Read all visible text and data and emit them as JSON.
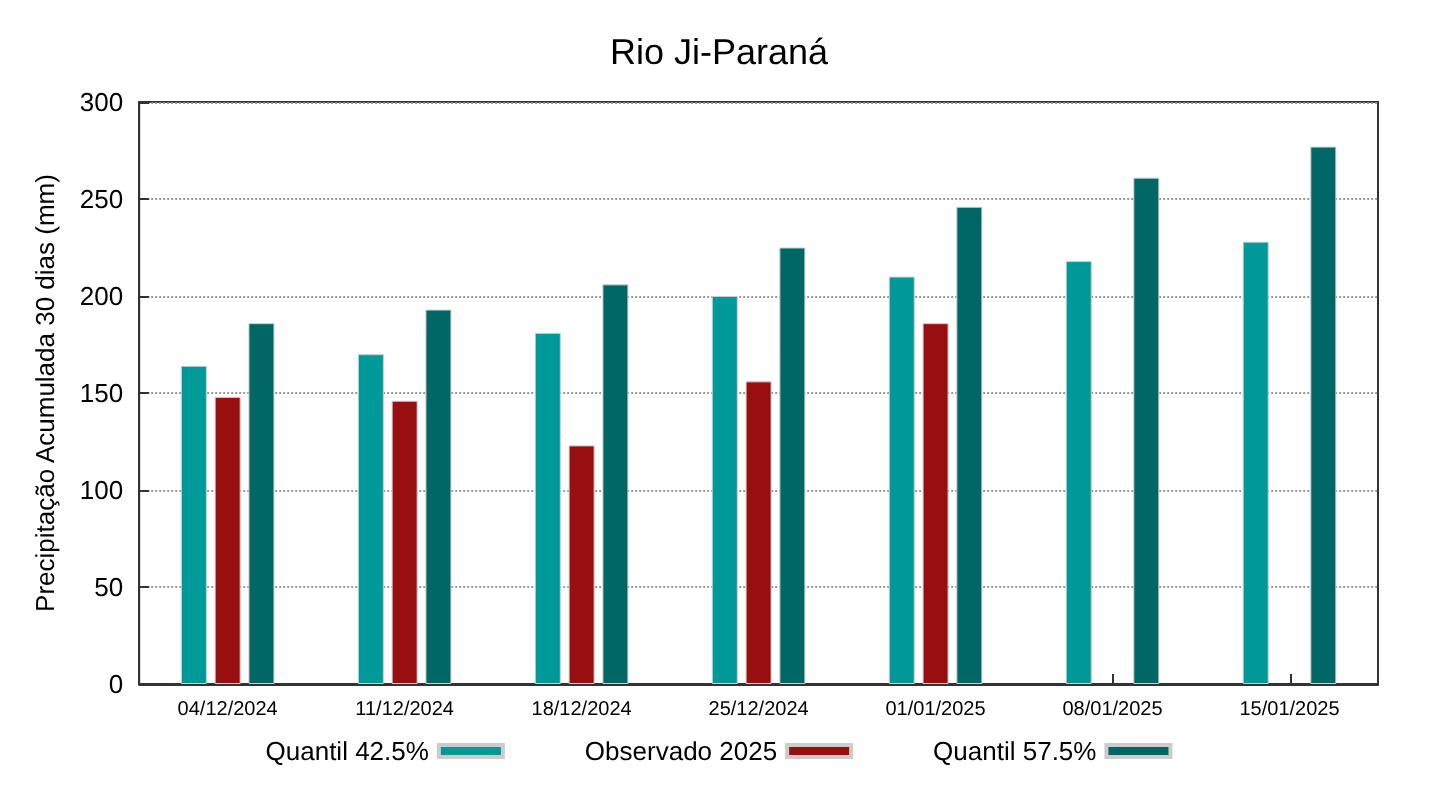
{
  "chart_data": {
    "type": "bar",
    "title": "Rio Ji-Paraná",
    "ylabel": "Precipitação Acumulada 30 dias (mm)",
    "categories": [
      "04/12/2024",
      "11/12/2024",
      "18/12/2024",
      "25/12/2024",
      "01/01/2025",
      "08/01/2025",
      "15/01/2025"
    ],
    "series": [
      {
        "name": "Quantil 42.5%",
        "color": "#009999",
        "values": [
          164,
          170,
          181,
          200,
          210,
          218,
          228
        ]
      },
      {
        "name": "Observado 2025",
        "color": "#990f0f",
        "values": [
          148,
          146,
          123,
          156,
          186,
          null,
          null
        ]
      },
      {
        "name": "Quantil 57.5%",
        "color": "#006666",
        "values": [
          186,
          193,
          206,
          225,
          246,
          261,
          277
        ]
      }
    ],
    "ylim": [
      0,
      300
    ],
    "yticks": [
      0,
      50,
      100,
      150,
      200,
      250,
      300
    ],
    "grid": "y",
    "legend": "bottom"
  }
}
